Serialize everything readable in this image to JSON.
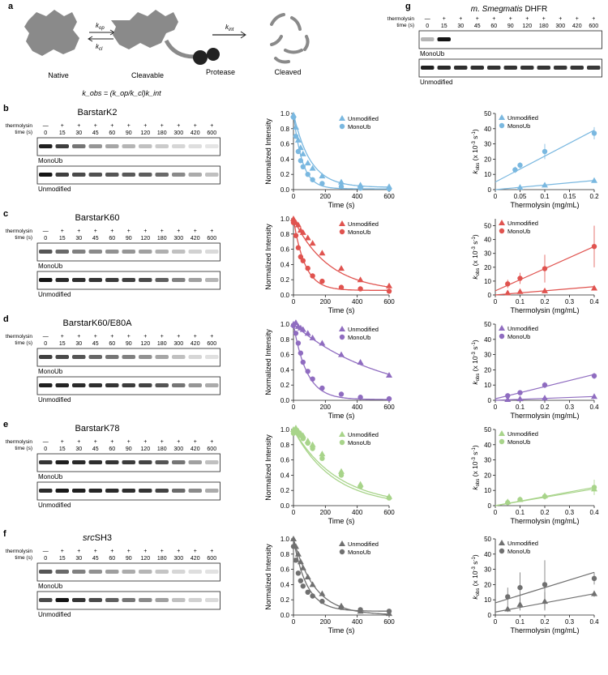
{
  "panel_letters": [
    "a",
    "b",
    "c",
    "d",
    "e",
    "f",
    "g"
  ],
  "schematic": {
    "states": [
      "Native",
      "Cleavable",
      "Cleaved"
    ],
    "protease_label": "Protease",
    "k_op": "k",
    "k_op_sub": "op",
    "k_cl": "k",
    "k_cl_sub": "cl",
    "k_int": "k",
    "k_int_sub": "int",
    "equation": "k_obs = (k_op/k_cl)k_int",
    "colors": {
      "protein": "#8a8a8a",
      "protease": "#222222"
    }
  },
  "gel_labels": {
    "thermolysin": "thermolysin",
    "time": "time (s)",
    "minus": "—",
    "plus": "+",
    "time_points": [
      "0",
      "15",
      "30",
      "45",
      "60",
      "90",
      "120",
      "180",
      "300",
      "420",
      "600"
    ],
    "monoub": "MonoUb",
    "unmodified": "Unmodified"
  },
  "panel_g": {
    "title": "m. Smegmatis DHFR",
    "title_italic_part": "m. Smegmatis",
    "title_rest": "DHFR"
  },
  "series_labels": {
    "unmodified": "Unmodified",
    "monoub": "MonoUb"
  },
  "axis_labels": {
    "decay_y": "Normalized Intensity",
    "decay_x": "Time (s)",
    "kobs_y": "k_obs (x 10^-3 s^-1)",
    "kobs_x": "Thermolysin (mg/mL)"
  },
  "rows": [
    {
      "letter": "b",
      "name": "BarstarK2",
      "name_italic": "",
      "color": "#7ab8e0",
      "gel_intensity": {
        "monoub": [
          0.95,
          0.8,
          0.55,
          0.4,
          0.32,
          0.25,
          0.2,
          0.15,
          0.1,
          0.06,
          0.03
        ],
        "unmod": [
          1,
          0.8,
          0.75,
          0.72,
          0.7,
          0.68,
          0.66,
          0.6,
          0.45,
          0.3,
          0.2
        ]
      }
    },
    {
      "letter": "c",
      "name": "BarstarK60",
      "name_italic": "",
      "color": "#e0534f",
      "gel_intensity": {
        "monoub": [
          0.7,
          0.6,
          0.5,
          0.45,
          0.42,
          0.4,
          0.35,
          0.28,
          0.2,
          0.12,
          0.08
        ],
        "unmod": [
          1,
          0.9,
          0.88,
          0.85,
          0.82,
          0.8,
          0.75,
          0.65,
          0.5,
          0.35,
          0.25
        ]
      }
    },
    {
      "letter": "d",
      "name": "BarstarK60/E80A",
      "name_italic": "",
      "color": "#8f6cc0",
      "gel_intensity": {
        "monoub": [
          0.8,
          0.75,
          0.7,
          0.62,
          0.55,
          0.5,
          0.42,
          0.32,
          0.2,
          0.1,
          0.05
        ],
        "unmod": [
          0.95,
          0.92,
          0.9,
          0.88,
          0.85,
          0.82,
          0.78,
          0.7,
          0.55,
          0.4,
          0.3
        ]
      }
    },
    {
      "letter": "e",
      "name": "BarstarK78",
      "name_italic": "",
      "color": "#a8d48a",
      "gel_intensity": {
        "monoub": [
          0.85,
          0.95,
          0.9,
          0.88,
          0.85,
          0.82,
          0.78,
          0.7,
          0.55,
          0.35,
          0.2
        ],
        "unmod": [
          0.9,
          0.98,
          0.95,
          0.92,
          0.9,
          0.88,
          0.85,
          0.78,
          0.6,
          0.45,
          0.3
        ]
      }
    },
    {
      "letter": "f",
      "name": "SH3",
      "name_italic": "src",
      "color": "#707070",
      "gel_intensity": {
        "monoub": [
          0.7,
          0.6,
          0.5,
          0.42,
          0.36,
          0.3,
          0.25,
          0.18,
          0.1,
          0.06,
          0.04
        ],
        "unmod": [
          0.75,
          1,
          0.85,
          0.75,
          0.65,
          0.55,
          0.45,
          0.35,
          0.2,
          0.12,
          0.08
        ]
      }
    }
  ],
  "gel_g": {
    "monoub": [
      0.25,
      1,
      0,
      0,
      0,
      0,
      0,
      0,
      0,
      0,
      0
    ],
    "unmod": [
      0.95,
      0.9,
      0.88,
      0.87,
      0.86,
      0.86,
      0.85,
      0.85,
      0.84,
      0.84,
      0.83
    ]
  },
  "chart_data": [
    {
      "panel": "b",
      "type": "line",
      "kind": "decay",
      "x_label": "Time (s)",
      "y_label": "Normalized Intensity",
      "xlim": [
        0,
        600
      ],
      "ylim": [
        0,
        1.0
      ],
      "xticks": [
        0,
        200,
        400,
        600
      ],
      "yticks": [
        0,
        0.2,
        0.4,
        0.6,
        0.8,
        1.0
      ],
      "series": [
        {
          "name": "Unmodified",
          "marker": "triangle",
          "x": [
            0,
            15,
            30,
            45,
            60,
            90,
            120,
            180,
            300,
            420,
            600
          ],
          "y": [
            0.98,
            0.82,
            0.65,
            0.55,
            0.47,
            0.35,
            0.28,
            0.18,
            0.1,
            0.06,
            0.04
          ],
          "fit_k": 0.0095,
          "fit_base": 0.03
        },
        {
          "name": "MonoUb",
          "marker": "circle",
          "x": [
            0,
            15,
            30,
            45,
            60,
            90,
            120,
            180,
            300,
            420,
            600
          ],
          "y": [
            0.95,
            0.7,
            0.5,
            0.38,
            0.3,
            0.2,
            0.13,
            0.08,
            0.04,
            0.02,
            0.01
          ],
          "fit_k": 0.018,
          "fit_base": 0.01
        }
      ]
    },
    {
      "panel": "b",
      "type": "scatter",
      "kind": "kobs",
      "x_label": "Thermolysin (mg/mL)",
      "y_label": "k_obs (x 10^-3 s^-1)",
      "xlim": [
        0,
        0.2
      ],
      "ylim": [
        0,
        50
      ],
      "xticks": [
        0,
        0.05,
        0.1,
        0.15,
        0.2
      ],
      "yticks": [
        0,
        10,
        20,
        30,
        40,
        50
      ],
      "series": [
        {
          "name": "Unmodified",
          "marker": "triangle",
          "x": [
            0.05,
            0.1,
            0.2
          ],
          "y": [
            1.5,
            3,
            6
          ],
          "fit": [
            [
              0,
              0
            ],
            [
              0.2,
              6
            ]
          ]
        },
        {
          "name": "MonoUb",
          "marker": "circle",
          "x": [
            0.04,
            0.05,
            0.1,
            0.2
          ],
          "y": [
            13,
            16,
            25,
            37
          ],
          "err": [
            2,
            2,
            5,
            4
          ],
          "fit": [
            [
              0,
              5
            ],
            [
              0.2,
              39
            ]
          ]
        }
      ]
    },
    {
      "panel": "c",
      "type": "line",
      "kind": "decay",
      "x_label": "Time (s)",
      "y_label": "Normalized Intensity",
      "xlim": [
        0,
        600
      ],
      "ylim": [
        0,
        1.0
      ],
      "xticks": [
        0,
        200,
        400,
        600
      ],
      "yticks": [
        0,
        0.2,
        0.4,
        0.6,
        0.8,
        1.0
      ],
      "series": [
        {
          "name": "Unmodified",
          "marker": "triangle",
          "x": [
            0,
            15,
            30,
            45,
            60,
            90,
            120,
            180,
            300,
            420,
            600
          ],
          "y": [
            1.0,
            0.95,
            0.92,
            0.85,
            0.82,
            0.75,
            0.68,
            0.55,
            0.35,
            0.2,
            0.12
          ],
          "fit_k": 0.0045,
          "fit_base": 0.04
        },
        {
          "name": "MonoUb",
          "marker": "circle",
          "x": [
            0,
            15,
            30,
            45,
            60,
            90,
            120,
            180,
            300,
            420,
            600
          ],
          "y": [
            0.95,
            0.78,
            0.62,
            0.5,
            0.45,
            0.35,
            0.25,
            0.18,
            0.1,
            0.08,
            0.05
          ],
          "fit_k": 0.014,
          "fit_base": 0.06
        }
      ]
    },
    {
      "panel": "c",
      "type": "scatter",
      "kind": "kobs",
      "x_label": "Thermolysin (mg/mL)",
      "y_label": "k_obs (x 10^-3 s^-1)",
      "xlim": [
        0,
        0.4
      ],
      "ylim": [
        0,
        55
      ],
      "xticks": [
        0,
        0.1,
        0.2,
        0.3,
        0.4
      ],
      "yticks": [
        0,
        10,
        20,
        30,
        40,
        50
      ],
      "series": [
        {
          "name": "Unmodified",
          "marker": "triangle",
          "x": [
            0.05,
            0.1,
            0.2,
            0.4
          ],
          "y": [
            1.5,
            2.5,
            3,
            5
          ],
          "fit": [
            [
              0,
              0
            ],
            [
              0.4,
              6
            ]
          ]
        },
        {
          "name": "MonoUb",
          "marker": "circle",
          "x": [
            0.05,
            0.1,
            0.2,
            0.4
          ],
          "y": [
            8,
            12,
            19,
            35
          ],
          "err": [
            3,
            4,
            10,
            15
          ],
          "fit": [
            [
              0,
              3
            ],
            [
              0.4,
              35
            ]
          ]
        }
      ]
    },
    {
      "panel": "d",
      "type": "line",
      "kind": "decay",
      "x_label": "Time (s)",
      "y_label": "Normalized Intensity",
      "xlim": [
        0,
        600
      ],
      "ylim": [
        0,
        1.0
      ],
      "xticks": [
        0,
        200,
        400,
        600
      ],
      "yticks": [
        0,
        0.2,
        0.4,
        0.6,
        0.8,
        1.0
      ],
      "series": [
        {
          "name": "Unmodified",
          "marker": "triangle",
          "x": [
            0,
            15,
            30,
            45,
            60,
            90,
            120,
            180,
            300,
            420,
            600
          ],
          "y": [
            1.0,
            1.02,
            0.97,
            0.95,
            0.93,
            0.88,
            0.82,
            0.75,
            0.6,
            0.5,
            0.33
          ],
          "fit_k": 0.0018,
          "fit_base": 0.0
        },
        {
          "name": "MonoUb",
          "marker": "circle",
          "x": [
            0,
            15,
            30,
            45,
            60,
            90,
            120,
            180,
            300,
            420,
            600
          ],
          "y": [
            0.98,
            0.88,
            0.75,
            0.62,
            0.5,
            0.38,
            0.28,
            0.16,
            0.08,
            0.04,
            0.02
          ],
          "fit_k": 0.012,
          "fit_base": 0.01
        }
      ]
    },
    {
      "panel": "d",
      "type": "scatter",
      "kind": "kobs",
      "x_label": "Thermolysin (mg/mL)",
      "y_label": "k_obs (x 10^-3 s^-1)",
      "xlim": [
        0,
        0.4
      ],
      "ylim": [
        0,
        50
      ],
      "xticks": [
        0,
        0.1,
        0.2,
        0.3,
        0.4
      ],
      "yticks": [
        0,
        10,
        20,
        30,
        40,
        50
      ],
      "series": [
        {
          "name": "Unmodified",
          "marker": "triangle",
          "x": [
            0.05,
            0.1,
            0.2,
            0.4
          ],
          "y": [
            0.5,
            1,
            1.5,
            2.5
          ],
          "fit": [
            [
              0,
              0
            ],
            [
              0.4,
              2.5
            ]
          ]
        },
        {
          "name": "MonoUb",
          "marker": "circle",
          "x": [
            0.05,
            0.1,
            0.2,
            0.4
          ],
          "y": [
            3,
            5,
            10,
            16
          ],
          "err": [
            1,
            1,
            2,
            2
          ],
          "fit": [
            [
              0,
              1
            ],
            [
              0.4,
              17
            ]
          ]
        }
      ]
    },
    {
      "panel": "e",
      "type": "line",
      "kind": "decay",
      "x_label": "Time (s)",
      "y_label": "Normalized Intensity",
      "xlim": [
        0,
        600
      ],
      "ylim": [
        0,
        1.0
      ],
      "xticks": [
        0,
        200,
        400,
        600
      ],
      "yticks": [
        0,
        0.2,
        0.4,
        0.6,
        0.8,
        1.0
      ],
      "series": [
        {
          "name": "Unmodified",
          "marker": "triangle",
          "x": [
            0,
            15,
            30,
            45,
            60,
            90,
            120,
            180,
            300,
            420,
            600
          ],
          "y": [
            1.0,
            1.02,
            0.98,
            0.95,
            0.92,
            0.85,
            0.8,
            0.68,
            0.45,
            0.28,
            0.12
          ],
          "fit_k": 0.0036,
          "fit_base": 0.0
        },
        {
          "name": "MonoUb",
          "marker": "circle",
          "x": [
            0,
            15,
            30,
            45,
            60,
            90,
            120,
            180,
            300,
            420,
            600
          ],
          "y": [
            0.95,
            0.98,
            0.95,
            0.92,
            0.88,
            0.82,
            0.75,
            0.62,
            0.4,
            0.25,
            0.1
          ],
          "fit_k": 0.004,
          "fit_base": 0.0
        }
      ]
    },
    {
      "panel": "e",
      "type": "scatter",
      "kind": "kobs",
      "x_label": "Thermolysin (mg/mL)",
      "y_label": "k_obs (x 10^-3 s^-1)",
      "xlim": [
        0,
        0.4
      ],
      "ylim": [
        0,
        50
      ],
      "xticks": [
        0,
        0.1,
        0.2,
        0.3,
        0.4
      ],
      "yticks": [
        0,
        10,
        20,
        30,
        40,
        50
      ],
      "series": [
        {
          "name": "Unmodified",
          "marker": "triangle",
          "x": [
            0.05,
            0.1,
            0.2,
            0.4
          ],
          "y": [
            2.5,
            4,
            6.5,
            11
          ],
          "fit": [
            [
              0,
              0
            ],
            [
              0.4,
              12
            ]
          ]
        },
        {
          "name": "MonoUb",
          "marker": "circle",
          "x": [
            0.05,
            0.1,
            0.2,
            0.4
          ],
          "y": [
            2,
            4,
            6,
            12
          ],
          "err": [
            1,
            1,
            2,
            5
          ],
          "fit": [
            [
              0,
              0
            ],
            [
              0.4,
              11
            ]
          ]
        }
      ]
    },
    {
      "panel": "f",
      "type": "line",
      "kind": "decay",
      "x_label": "Time (s)",
      "y_label": "Normalized Intensity",
      "xlim": [
        0,
        600
      ],
      "ylim": [
        0,
        1.0
      ],
      "xticks": [
        0,
        200,
        400,
        600
      ],
      "yticks": [
        0,
        0.2,
        0.4,
        0.6,
        0.8,
        1.0
      ],
      "series": [
        {
          "name": "Unmodified",
          "marker": "triangle",
          "x": [
            0,
            15,
            30,
            45,
            60,
            90,
            120,
            180,
            300,
            420,
            600
          ],
          "y": [
            1.0,
            0.9,
            0.8,
            0.7,
            0.62,
            0.5,
            0.4,
            0.28,
            0.12,
            0.05,
            0.02
          ],
          "fit_k": 0.0075,
          "fit_base": 0.0
        },
        {
          "name": "MonoUb",
          "marker": "circle",
          "x": [
            0,
            15,
            30,
            45,
            60,
            90,
            120,
            180,
            300,
            420,
            600
          ],
          "y": [
            0.9,
            0.72,
            0.55,
            0.45,
            0.38,
            0.3,
            0.25,
            0.18,
            0.1,
            0.07,
            0.05
          ],
          "fit_k": 0.012,
          "fit_base": 0.05
        }
      ]
    },
    {
      "panel": "f",
      "type": "scatter",
      "kind": "kobs",
      "x_label": "Thermolysin (mg/mL)",
      "y_label": "k_obs (x 10^-3 s^-1)",
      "xlim": [
        0,
        0.4
      ],
      "ylim": [
        0,
        50
      ],
      "xticks": [
        0,
        0.1,
        0.2,
        0.3,
        0.4
      ],
      "yticks": [
        0,
        10,
        20,
        30,
        40,
        50
      ],
      "series": [
        {
          "name": "Unmodified",
          "marker": "triangle",
          "x": [
            0.05,
            0.1,
            0.2,
            0.4
          ],
          "y": [
            4,
            7,
            9,
            14
          ],
          "err": [
            2,
            4,
            6,
            2
          ],
          "fit": [
            [
              0,
              2
            ],
            [
              0.4,
              14
            ]
          ]
        },
        {
          "name": "MonoUb",
          "marker": "circle",
          "x": [
            0.05,
            0.1,
            0.2,
            0.4
          ],
          "y": [
            12,
            18,
            20,
            24
          ],
          "err": [
            6,
            10,
            16,
            4
          ],
          "fit": [
            [
              0,
              8
            ],
            [
              0.4,
              28
            ]
          ]
        }
      ]
    }
  ]
}
